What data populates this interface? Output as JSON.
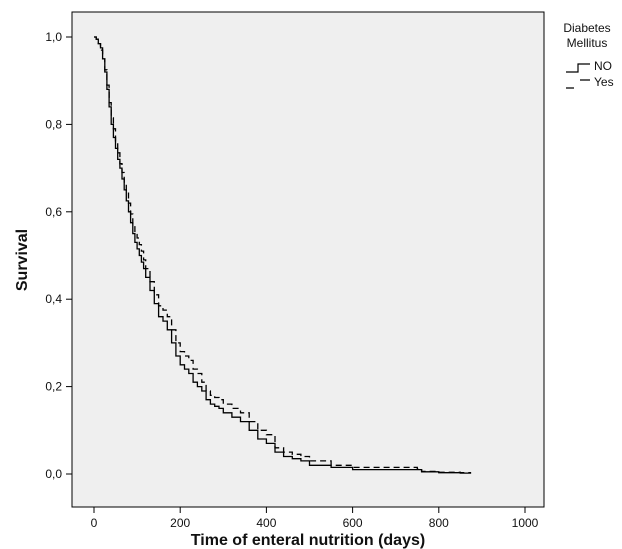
{
  "chart_data": {
    "type": "line",
    "xlabel": "Time of enteral nutrition (days)",
    "ylabel": "Survival",
    "xlim": [
      0,
      1000
    ],
    "ylim": [
      0,
      1
    ],
    "x_ticks": [
      {
        "value": 0,
        "label": "0"
      },
      {
        "value": 200,
        "label": "200"
      },
      {
        "value": 400,
        "label": "400"
      },
      {
        "value": 600,
        "label": "600"
      },
      {
        "value": 800,
        "label": "800"
      },
      {
        "value": 1000,
        "label": "1000"
      }
    ],
    "y_ticks": [
      {
        "value": 0.0,
        "label": "0,0"
      },
      {
        "value": 0.2,
        "label": "0,2"
      },
      {
        "value": 0.4,
        "label": "0,4"
      },
      {
        "value": 0.6,
        "label": "0,6"
      },
      {
        "value": 0.8,
        "label": "0,8"
      },
      {
        "value": 1.0,
        "label": "1,0"
      }
    ],
    "grid": false,
    "legend": {
      "title_lines": [
        "Diabetes",
        "Mellitus"
      ],
      "placement": "top-right-outside"
    },
    "series": [
      {
        "name": "NO",
        "style": "solid",
        "color": "#000000",
        "x": [
          0,
          5,
          10,
          15,
          20,
          25,
          30,
          35,
          40,
          45,
          50,
          55,
          60,
          65,
          70,
          75,
          80,
          85,
          90,
          95,
          100,
          105,
          110,
          115,
          120,
          130,
          140,
          150,
          160,
          170,
          180,
          190,
          200,
          210,
          220,
          230,
          240,
          250,
          260,
          270,
          280,
          290,
          300,
          320,
          340,
          360,
          380,
          400,
          420,
          440,
          460,
          480,
          500,
          550,
          600,
          650,
          700,
          750,
          760,
          800,
          850,
          875
        ],
        "y": [
          1.0,
          0.995,
          0.985,
          0.975,
          0.95,
          0.92,
          0.88,
          0.84,
          0.8,
          0.77,
          0.745,
          0.72,
          0.7,
          0.675,
          0.65,
          0.625,
          0.6,
          0.575,
          0.55,
          0.53,
          0.515,
          0.5,
          0.485,
          0.47,
          0.45,
          0.42,
          0.39,
          0.36,
          0.35,
          0.33,
          0.3,
          0.27,
          0.25,
          0.24,
          0.23,
          0.21,
          0.2,
          0.19,
          0.17,
          0.16,
          0.155,
          0.15,
          0.14,
          0.13,
          0.12,
          0.1,
          0.08,
          0.07,
          0.05,
          0.04,
          0.035,
          0.03,
          0.02,
          0.015,
          0.01,
          0.01,
          0.01,
          0.01,
          0.005,
          0.003,
          0.002,
          0.002
        ]
      },
      {
        "name": "Yes",
        "style": "dashed",
        "color": "#000000",
        "x": [
          0,
          5,
          10,
          15,
          20,
          25,
          30,
          35,
          40,
          45,
          50,
          55,
          60,
          65,
          70,
          75,
          80,
          85,
          90,
          95,
          100,
          105,
          110,
          115,
          120,
          130,
          140,
          150,
          160,
          170,
          180,
          190,
          200,
          210,
          220,
          230,
          240,
          250,
          260,
          270,
          280,
          290,
          300,
          320,
          340,
          360,
          380,
          400,
          420,
          440,
          460,
          480,
          500,
          550,
          600,
          650,
          700,
          750,
          760,
          800,
          850,
          875
        ],
        "y": [
          1.0,
          0.995,
          0.985,
          0.97,
          0.95,
          0.925,
          0.89,
          0.85,
          0.815,
          0.79,
          0.76,
          0.735,
          0.71,
          0.69,
          0.665,
          0.645,
          0.62,
          0.595,
          0.57,
          0.55,
          0.54,
          0.525,
          0.51,
          0.49,
          0.47,
          0.44,
          0.41,
          0.385,
          0.375,
          0.36,
          0.33,
          0.3,
          0.28,
          0.27,
          0.26,
          0.24,
          0.23,
          0.21,
          0.19,
          0.18,
          0.175,
          0.17,
          0.16,
          0.15,
          0.14,
          0.12,
          0.1,
          0.09,
          0.06,
          0.05,
          0.045,
          0.04,
          0.03,
          0.02,
          0.015,
          0.015,
          0.015,
          0.012,
          0.006,
          0.004,
          0.003,
          0.003
        ]
      }
    ]
  }
}
